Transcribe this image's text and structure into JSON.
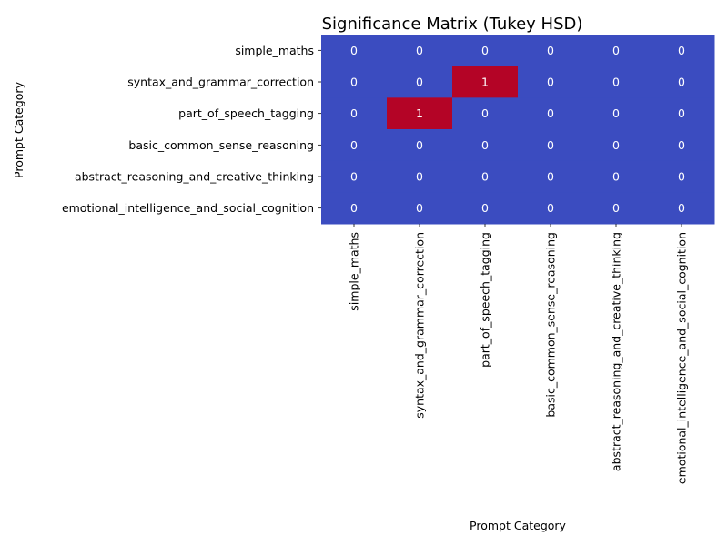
{
  "chart_data": {
    "type": "heatmap",
    "title": "Significance Matrix (Tukey HSD)",
    "xlabel": "Prompt Category",
    "ylabel": "Prompt Category",
    "categories": [
      "simple_maths",
      "syntax_and_grammar_correction",
      "part_of_speech_tagging",
      "basic_common_sense_reasoning",
      "abstract_reasoning_and_creative_thinking",
      "emotional_intelligence_and_social_cognition"
    ],
    "matrix": [
      [
        0,
        0,
        0,
        0,
        0,
        0
      ],
      [
        0,
        0,
        1,
        0,
        0,
        0
      ],
      [
        0,
        1,
        0,
        0,
        0,
        0
      ],
      [
        0,
        0,
        0,
        0,
        0,
        0
      ],
      [
        0,
        0,
        0,
        0,
        0,
        0
      ],
      [
        0,
        0,
        0,
        0,
        0,
        0
      ]
    ],
    "colors": {
      "low": "#3b4cc0",
      "high": "#b40426",
      "cell_text": "#ffffff"
    },
    "colorbar": false,
    "grid": false
  }
}
